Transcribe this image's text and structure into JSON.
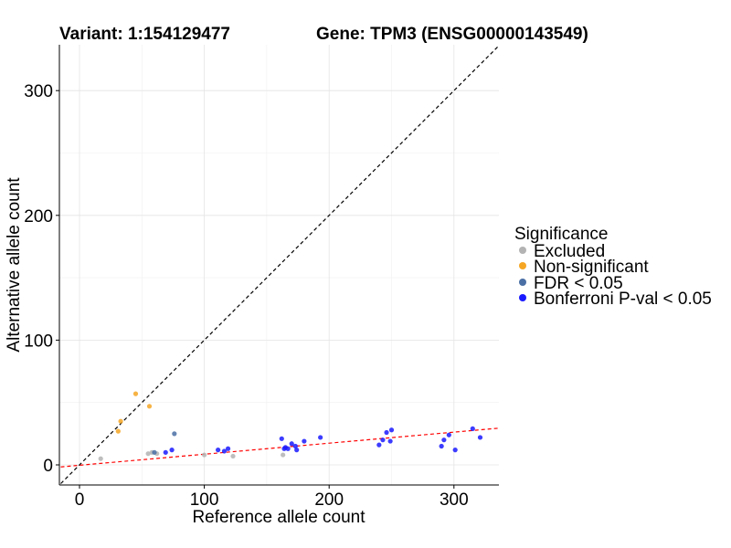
{
  "title_variant": "Variant: 1:154129477",
  "title_gene": "Gene: TPM3 (ENSG00000143549)",
  "chart_data": {
    "type": "scatter",
    "xlabel": "Reference allele count",
    "ylabel": "Alternative allele count",
    "xlim": [
      -15,
      335
    ],
    "ylim": [
      -15,
      335
    ],
    "x_ticks": [
      0,
      100,
      200,
      300
    ],
    "y_ticks": [
      0,
      100,
      200,
      300
    ],
    "x_tick_labels": [
      "0",
      "100",
      "200",
      "300"
    ],
    "y_tick_labels": [
      "0",
      "100",
      "200",
      "300"
    ],
    "grid": true,
    "legend_position": "right",
    "legend": {
      "title": "Significance",
      "entries": [
        {
          "label": "Excluded",
          "color": "#b3b3b3"
        },
        {
          "label": "Non-significant",
          "color": "#f5a623"
        },
        {
          "label": "FDR < 0.05",
          "color": "#4a6fa5"
        },
        {
          "label": "Bonferroni P-val < 0.05",
          "color": "#1a1aff"
        }
      ]
    },
    "reference_lines": [
      {
        "kind": "identity",
        "slope": 1,
        "intercept": 0,
        "color": "#000000",
        "style": "dashed"
      },
      {
        "kind": "fit",
        "slope": 0.0885,
        "intercept": -0.3,
        "color": "#ff0000",
        "style": "dashed"
      }
    ],
    "series": [
      {
        "name": "Excluded",
        "color": "#b3b3b3",
        "points": [
          [
            17,
            5
          ],
          [
            55,
            9
          ],
          [
            58,
            10
          ],
          [
            62,
            9
          ],
          [
            100,
            8
          ],
          [
            123,
            7
          ],
          [
            163,
            8
          ]
        ]
      },
      {
        "name": "Non-significant",
        "color": "#f5a623",
        "points": [
          [
            31,
            27
          ],
          [
            33,
            35
          ],
          [
            45,
            57
          ],
          [
            56,
            47
          ]
        ]
      },
      {
        "name": "FDR < 0.05",
        "color": "#4a6fa5",
        "points": [
          [
            60,
            10
          ],
          [
            76,
            25
          ]
        ]
      },
      {
        "name": "Bonferroni P-val < 0.05",
        "color": "#1a1aff",
        "points": [
          [
            69,
            10
          ],
          [
            74,
            12
          ],
          [
            111,
            12
          ],
          [
            116,
            11
          ],
          [
            119,
            13
          ],
          [
            162,
            21
          ],
          [
            164,
            13
          ],
          [
            165,
            14
          ],
          [
            167,
            13
          ],
          [
            170,
            17
          ],
          [
            173,
            15
          ],
          [
            174,
            12
          ],
          [
            180,
            19
          ],
          [
            193,
            22
          ],
          [
            240,
            16
          ],
          [
            243,
            20
          ],
          [
            246,
            26
          ],
          [
            249,
            19
          ],
          [
            250,
            28
          ],
          [
            290,
            15
          ],
          [
            292,
            20
          ],
          [
            296,
            24
          ],
          [
            301,
            12
          ],
          [
            315,
            29
          ],
          [
            321,
            22
          ]
        ]
      }
    ]
  }
}
